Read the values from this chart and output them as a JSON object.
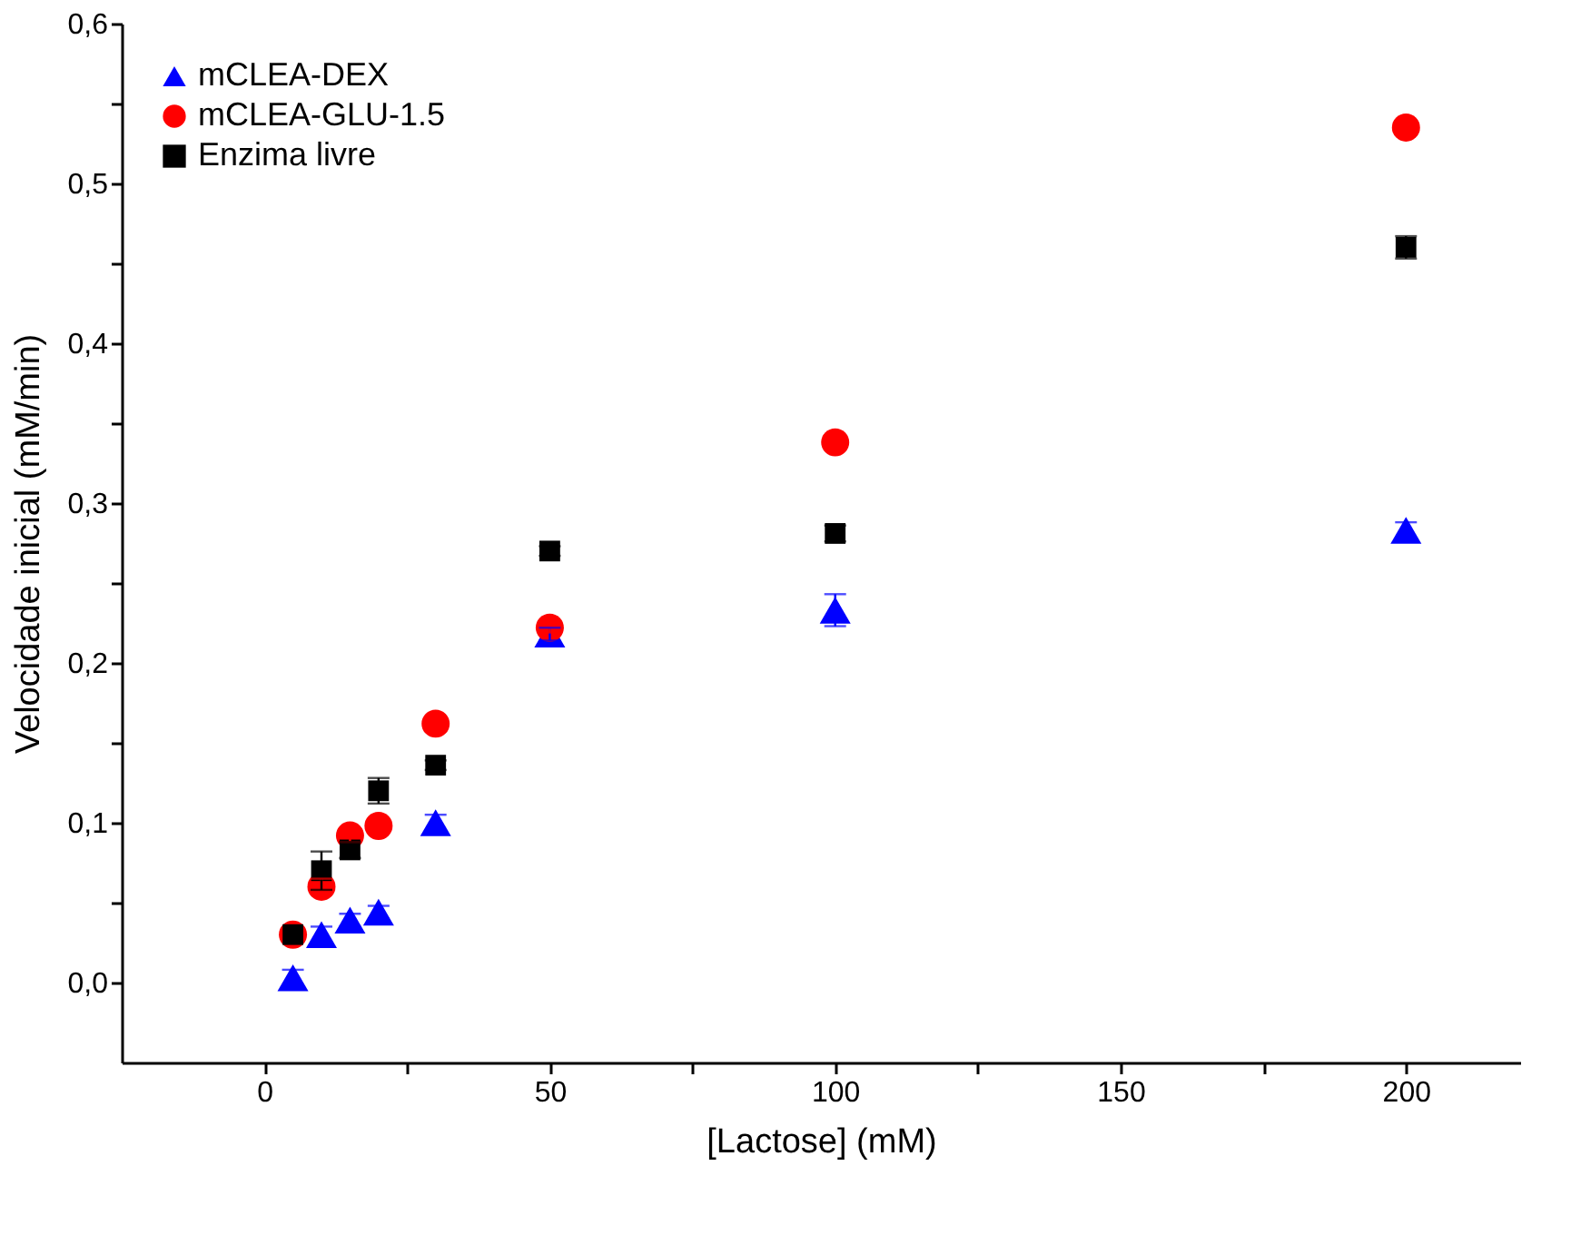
{
  "chart_data": {
    "type": "scatter",
    "xlabel": "[Lactose] (mM)",
    "ylabel": "Velocidade inicial (mM/min)",
    "x": [
      5,
      10,
      15,
      20,
      30,
      50,
      100,
      200
    ],
    "series": [
      {
        "name": "mCLEA-DEX",
        "color": "#0000ff",
        "marker": "triangle",
        "values": [
          0.003,
          0.03,
          0.039,
          0.044,
          0.1,
          0.218,
          0.233,
          0.283
        ],
        "errors": [
          0.005,
          0.005,
          0.004,
          0.004,
          0.005,
          0.004,
          0.01,
          0.005
        ]
      },
      {
        "name": "mCLEA-GLU-1.5",
        "color": "#ff0000",
        "marker": "circle",
        "values": [
          0.03,
          0.06,
          0.092,
          0.098,
          0.162,
          0.222,
          0.338,
          0.535
        ],
        "errors": [
          null,
          0.005,
          0.004,
          0.003,
          0.003,
          0.003,
          0.003,
          0.003
        ]
      },
      {
        "name": "Enzima livre",
        "color": "#000000",
        "marker": "square",
        "values": [
          0.03,
          0.07,
          0.083,
          0.12,
          0.136,
          0.27,
          0.281,
          0.46
        ],
        "errors": [
          null,
          0.012,
          0.005,
          0.008,
          0.003,
          0.003,
          0.005,
          0.007
        ]
      }
    ],
    "xlim": [
      -25,
      220
    ],
    "ylim": [
      -0.05,
      0.6
    ],
    "xticks": [
      0,
      {
        "value": 25,
        "label": null
      },
      50,
      {
        "value": 75,
        "label": null
      },
      100,
      {
        "value": 125,
        "label": null
      },
      150,
      {
        "value": 175,
        "label": null
      },
      200
    ],
    "yticks": [
      {
        "value": 0.0,
        "label": "0,0"
      },
      {
        "value": 0.05,
        "label": null
      },
      {
        "value": 0.1,
        "label": "0,1"
      },
      {
        "value": 0.15,
        "label": null
      },
      {
        "value": 0.2,
        "label": "0,2"
      },
      {
        "value": 0.25,
        "label": null
      },
      {
        "value": 0.3,
        "label": "0,3"
      },
      {
        "value": 0.35,
        "label": null
      },
      {
        "value": 0.4,
        "label": "0,4"
      },
      {
        "value": 0.45,
        "label": null
      },
      {
        "value": 0.5,
        "label": "0,5"
      },
      {
        "value": 0.55,
        "label": null
      },
      {
        "value": 0.6,
        "label": "0,6"
      }
    ],
    "grid": false,
    "legend": "top left"
  }
}
